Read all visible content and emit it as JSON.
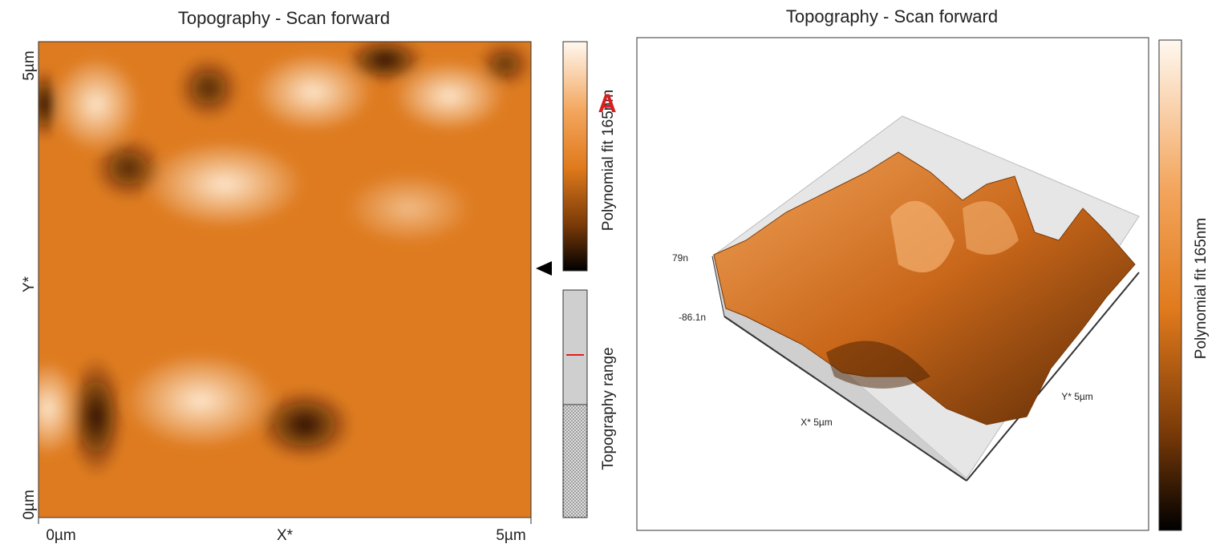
{
  "left_panel": {
    "title": "Topography - Scan forward",
    "y_axis": {
      "top": "5µm",
      "label": "Y*",
      "bottom": "0µm"
    },
    "x_axis": {
      "left": "0µm",
      "label": "X*",
      "right": "5µm"
    },
    "colorbar_label": "Polynomial fit 165nm",
    "range_label": "Topography range"
  },
  "annotation": "A",
  "right_panel": {
    "title": "Topography - Scan forward",
    "z_max": "79n",
    "z_min": "-86.1n",
    "x_label": "X* 5µm",
    "y_label": "Y* 5µm",
    "colorbar_label": "Polynomial fit 165nm"
  }
}
